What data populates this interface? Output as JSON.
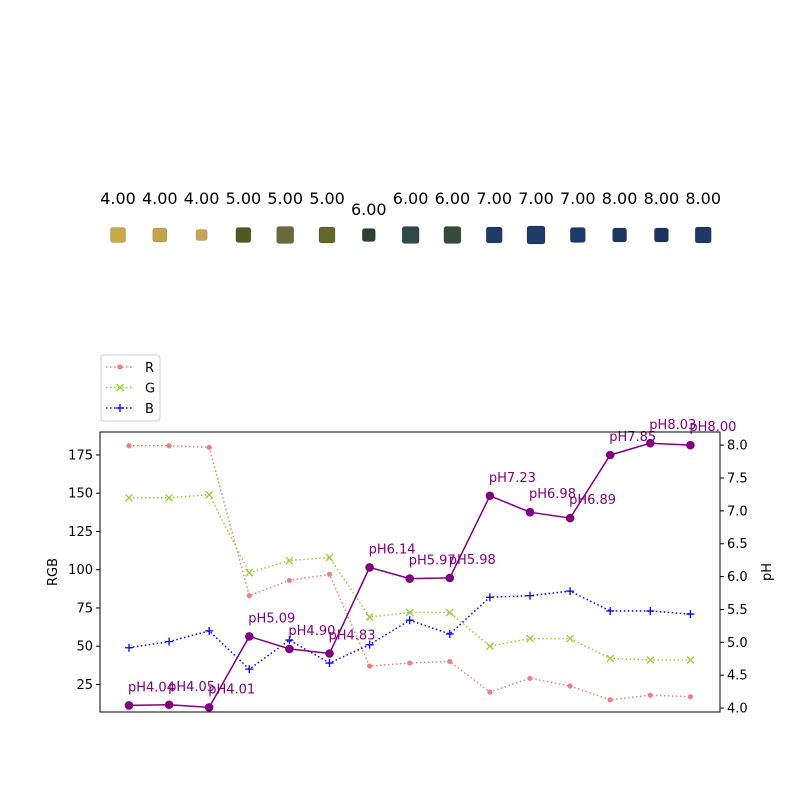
{
  "samples": {
    "labels": [
      "4.00",
      "4.00",
      "4.00",
      "5.00",
      "5.00",
      "5.00",
      "6.00",
      "6.00",
      "6.00",
      "7.00",
      "7.00",
      "7.00",
      "8.00",
      "8.00",
      "8.00"
    ],
    "swatch_colors": [
      "#c9a84a",
      "#c4a44a",
      "#c9a550",
      "#4e5a22",
      "#6b6a3a",
      "#66652a",
      "#2c4030",
      "#2f4a4c",
      "#344b3a",
      "#1f3a66",
      "#1e3a68",
      "#1e3a6c",
      "#1d3660",
      "#1c3462",
      "#1e3962"
    ]
  },
  "legend": {
    "r_label": "R",
    "g_label": "G",
    "b_label": "B",
    "placement": "upper-left, above plot"
  },
  "chart_data": {
    "type": "line",
    "x": [
      0,
      1,
      2,
      3,
      4,
      5,
      6,
      7,
      8,
      9,
      10,
      11,
      12,
      13,
      14
    ],
    "ylabel": "RGB",
    "y2label": "pH",
    "ylim": [
      7,
      190
    ],
    "y2lim": [
      3.94,
      8.2
    ],
    "yticks": [
      "25",
      "50",
      "75",
      "100",
      "125",
      "150",
      "175"
    ],
    "y2ticks": [
      "4.0",
      "4.5",
      "5.0",
      "5.5",
      "6.0",
      "6.5",
      "7.0",
      "7.5",
      "8.0"
    ],
    "series": [
      {
        "name": "R",
        "axis": "left",
        "color": "#f08080",
        "linestyle": "dotted",
        "marker": "dot",
        "values": [
          181,
          181,
          180,
          83,
          93,
          97,
          37,
          39,
          40,
          20,
          29,
          24,
          15,
          18,
          17
        ]
      },
      {
        "name": "G",
        "axis": "left",
        "color": "#9acd32",
        "linestyle": "dotted",
        "marker": "x",
        "values": [
          147,
          147,
          149,
          98,
          106,
          108,
          69,
          72,
          72,
          50,
          55,
          55,
          42,
          41,
          41
        ]
      },
      {
        "name": "B",
        "axis": "left",
        "color": "#0000ff",
        "linestyle": "dotted",
        "marker": "plus",
        "values": [
          49,
          53,
          60,
          35,
          54,
          39,
          51,
          67,
          58,
          82,
          83,
          86,
          73,
          73,
          71
        ]
      },
      {
        "axis": "right",
        "color": "#800080",
        "linestyle": "solid",
        "marker": "circle",
        "values": [
          4.04,
          4.05,
          4.01,
          5.09,
          4.9,
          4.83,
          6.14,
          5.97,
          5.98,
          7.23,
          6.98,
          6.89,
          7.85,
          8.03,
          8.0
        ]
      }
    ],
    "annotations": [
      "pH4.04",
      "pH4.05",
      "pH4.01",
      "pH5.09",
      "pH4.90",
      "pH4.83",
      "pH6.14",
      "pH5.97",
      "pH5.98",
      "pH7.23",
      "pH6.98",
      "pH6.89",
      "pH7.85",
      "pH8.03",
      "pH8.00"
    ],
    "grid": false
  }
}
